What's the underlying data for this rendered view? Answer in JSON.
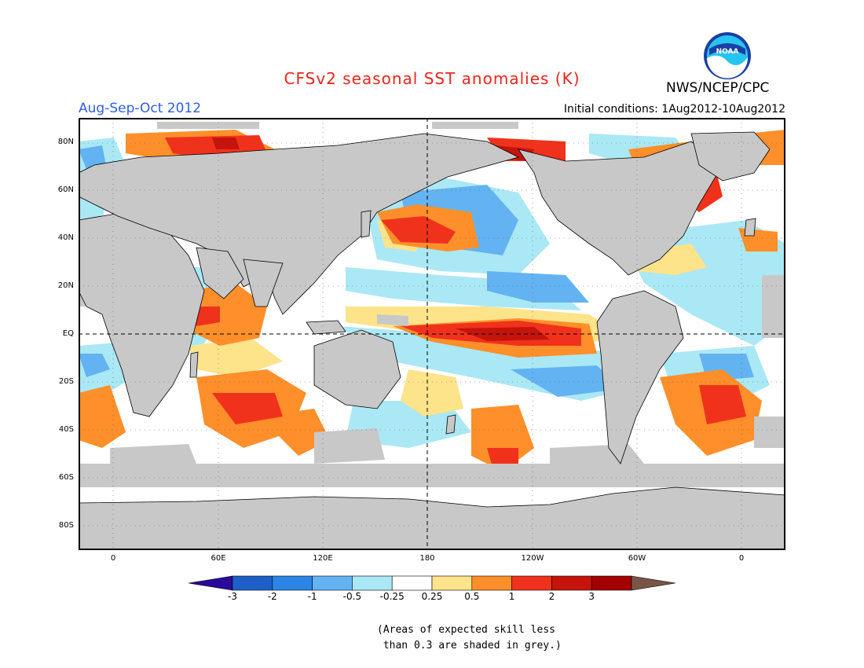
{
  "title": "CFSv2 seasonal SST anomalies (K)",
  "organization": "NWS/NCEP/CPC",
  "logo_text": "NOAA",
  "period": "Aug-Sep-Oct 2012",
  "initial_conditions": "Initial conditions: 1Aug2012-10Aug2012",
  "colors": {
    "title": "#e8261c",
    "period": "#2d5fe0",
    "land": "#c8c8c8",
    "ocean_neutral": "#ffffff"
  },
  "lat_labels": [
    "80N",
    "60N",
    "40N",
    "20N",
    "EQ",
    "20S",
    "40S",
    "60S",
    "80S"
  ],
  "lon_labels": [
    "0",
    "60E",
    "120E",
    "180",
    "120W",
    "60W",
    "0"
  ],
  "colorbar": {
    "labels": [
      "-3",
      "-2",
      "-1",
      "-0.5",
      "-0.25",
      "0.25",
      "0.5",
      "1",
      "2",
      "3"
    ],
    "colors": [
      "#2a0a9a",
      "#1f5fc8",
      "#2c85e6",
      "#63b3f2",
      "#aae8f5",
      "#ffffff",
      "#fde38a",
      "#fe8f2a",
      "#f0321c",
      "#c4140c",
      "#a30000",
      "#795548"
    ]
  },
  "note_lines": [
    "(Areas of expected skill less",
    " than 0.3 are shaded in grey.)"
  ]
}
